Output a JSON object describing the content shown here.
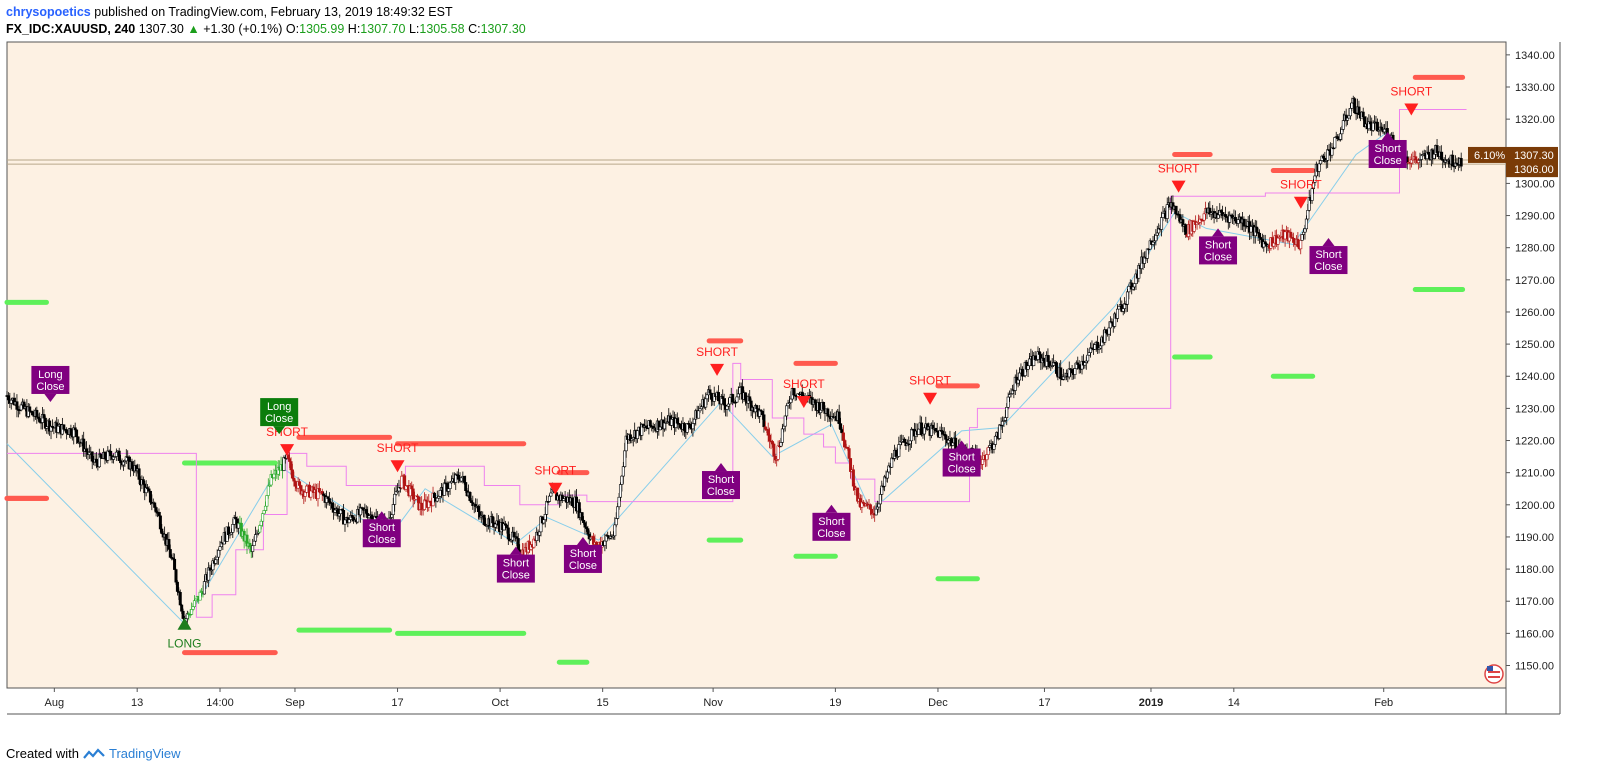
{
  "header": {
    "author": "chrysopoetics",
    "published": "published on TradingView.com, February 13, 2019 18:49:32 EST",
    "symbol": "FX_IDC:XAUUSD, 240",
    "last": "1307.30",
    "change": "+1.30 (+0.1%)",
    "o_label": "O:",
    "o_val": "1305.99",
    "h_label": "H:",
    "h_val": "1307.70",
    "l_label": "L:",
    "l_val": "1305.58",
    "c_label": "C:",
    "c_val": "1307.30"
  },
  "footer": {
    "created": "Created with",
    "brand": "TradingView"
  },
  "colors": {
    "background": "#fdf1e3",
    "up_candle": "#2aa82a",
    "down_candle": "#b01515",
    "normal_candle": "#000000",
    "short_marker": "#ff1f1f",
    "long_marker": "#1e7e1e",
    "close_box": "#800080",
    "long_close_box": "#0b7d0b",
    "level_red": "#ff5a4f",
    "level_green": "#5ef05a",
    "trail_line": "#ee82ee",
    "connector": "#87ceeb",
    "price_tag": "#7a3b07"
  },
  "chart_data": {
    "type": "candlestick",
    "title": "",
    "y_ticks": [
      "1340.00",
      "1330.00",
      "1320.00",
      "1310.00",
      "1300.00",
      "1290.00",
      "1280.00",
      "1270.00",
      "1260.00",
      "1250.00",
      "1240.00",
      "1230.00",
      "1220.00",
      "1210.00",
      "1200.00",
      "1190.00",
      "1180.00",
      "1170.00",
      "1160.00",
      "1150.00"
    ],
    "ylim": [
      1143,
      1344
    ],
    "x_ticks": [
      {
        "label": "Aug",
        "x": 0.1,
        "bold": false
      },
      {
        "label": "13",
        "x": 1.15,
        "bold": false
      },
      {
        "label": "14:00",
        "x": 2.2,
        "bold": false
      },
      {
        "label": "Sep",
        "x": 3.15,
        "bold": false
      },
      {
        "label": "17",
        "x": 4.45,
        "bold": false
      },
      {
        "label": "Oct",
        "x": 5.75,
        "bold": false
      },
      {
        "label": "15",
        "x": 7.05,
        "bold": false
      },
      {
        "label": "Nov",
        "x": 8.45,
        "bold": false
      },
      {
        "label": "19",
        "x": 10.0,
        "bold": false
      },
      {
        "label": "Dec",
        "x": 11.3,
        "bold": false
      },
      {
        "label": "17",
        "x": 12.65,
        "bold": false
      },
      {
        "label": "2019",
        "x": 14.0,
        "bold": true
      },
      {
        "label": "14",
        "x": 15.05,
        "bold": false
      },
      {
        "label": "Feb",
        "x": 16.95,
        "bold": false
      }
    ],
    "xlim": [
      -0.5,
      18.5
    ],
    "price_path": [
      [
        -0.5,
        1234
      ],
      [
        -0.3,
        1230
      ],
      [
        0.1,
        1224
      ],
      [
        0.35,
        1223
      ],
      [
        0.6,
        1213
      ],
      [
        0.85,
        1216
      ],
      [
        1.1,
        1212
      ],
      [
        1.4,
        1198
      ],
      [
        1.6,
        1182
      ],
      [
        1.75,
        1164
      ],
      [
        1.95,
        1172
      ],
      [
        2.2,
        1188
      ],
      [
        2.4,
        1195
      ],
      [
        2.6,
        1185
      ],
      [
        2.85,
        1208
      ],
      [
        3.05,
        1214
      ],
      [
        3.2,
        1205
      ],
      [
        3.5,
        1203
      ],
      [
        3.8,
        1195
      ],
      [
        4.05,
        1198
      ],
      [
        4.3,
        1193
      ],
      [
        4.5,
        1208
      ],
      [
        4.75,
        1199
      ],
      [
        5.0,
        1204
      ],
      [
        5.25,
        1209
      ],
      [
        5.5,
        1196
      ],
      [
        5.8,
        1193
      ],
      [
        6.05,
        1185
      ],
      [
        6.2,
        1190
      ],
      [
        6.4,
        1203
      ],
      [
        6.7,
        1201
      ],
      [
        6.95,
        1187
      ],
      [
        7.2,
        1191
      ],
      [
        7.35,
        1221
      ],
      [
        7.6,
        1224
      ],
      [
        7.9,
        1226
      ],
      [
        8.15,
        1224
      ],
      [
        8.4,
        1235
      ],
      [
        8.6,
        1231
      ],
      [
        8.8,
        1235
      ],
      [
        9.05,
        1228
      ],
      [
        9.25,
        1215
      ],
      [
        9.45,
        1236
      ],
      [
        9.7,
        1232
      ],
      [
        10.05,
        1227
      ],
      [
        10.3,
        1200
      ],
      [
        10.5,
        1198
      ],
      [
        10.75,
        1216
      ],
      [
        11.05,
        1224
      ],
      [
        11.35,
        1222
      ],
      [
        11.6,
        1217
      ],
      [
        11.85,
        1214
      ],
      [
        12.05,
        1221
      ],
      [
        12.3,
        1240
      ],
      [
        12.55,
        1246
      ],
      [
        12.75,
        1244
      ],
      [
        12.9,
        1239
      ],
      [
        13.15,
        1245
      ],
      [
        13.4,
        1252
      ],
      [
        13.7,
        1265
      ],
      [
        14.0,
        1282
      ],
      [
        14.25,
        1294
      ],
      [
        14.45,
        1285
      ],
      [
        14.7,
        1291
      ],
      [
        14.95,
        1290
      ],
      [
        15.2,
        1288
      ],
      [
        15.45,
        1281
      ],
      [
        15.7,
        1284
      ],
      [
        15.9,
        1281
      ],
      [
        16.1,
        1305
      ],
      [
        16.35,
        1313
      ],
      [
        16.55,
        1325
      ],
      [
        16.75,
        1318
      ],
      [
        17.0,
        1316
      ],
      [
        17.2,
        1308
      ],
      [
        17.4,
        1307
      ],
      [
        17.6,
        1310
      ],
      [
        17.8,
        1307
      ],
      [
        17.95,
        1307.3
      ]
    ],
    "red_segments": [
      [
        3.05,
        3.5
      ],
      [
        4.5,
        4.9
      ],
      [
        6.0,
        6.2
      ],
      [
        6.9,
        7.05
      ],
      [
        9.1,
        9.3
      ],
      [
        10.1,
        10.5
      ],
      [
        11.8,
        11.95
      ],
      [
        14.45,
        14.7
      ],
      [
        15.5,
        15.9
      ],
      [
        17.25,
        17.4
      ]
    ],
    "green_segments": [
      [
        1.8,
        2.0
      ],
      [
        2.45,
        2.6
      ],
      [
        2.7,
        3.0
      ]
    ],
    "connector_line": [
      [
        -0.5,
        1219
      ],
      [
        1.75,
        1163
      ],
      [
        2.95,
        1212
      ],
      [
        4.35,
        1190
      ],
      [
        4.8,
        1205
      ],
      [
        5.95,
        1188
      ],
      [
        6.35,
        1196
      ],
      [
        7.0,
        1189
      ],
      [
        8.55,
        1232
      ],
      [
        9.2,
        1215
      ],
      [
        9.95,
        1225
      ],
      [
        10.45,
        1198
      ],
      [
        11.6,
        1223
      ],
      [
        12.1,
        1224
      ],
      [
        13.55,
        1262
      ],
      [
        14.3,
        1291
      ],
      [
        14.7,
        1286
      ],
      [
        15.8,
        1281
      ],
      [
        16.6,
        1309
      ],
      [
        17.0,
        1316
      ]
    ],
    "trail_line": [
      [
        -0.5,
        1216
      ],
      [
        0.1,
        1216
      ],
      [
        1.9,
        1165
      ],
      [
        2.1,
        1172
      ],
      [
        2.4,
        1186
      ],
      [
        2.75,
        1197
      ],
      [
        3.05,
        1216
      ],
      [
        3.3,
        1212
      ],
      [
        3.8,
        1206
      ],
      [
        4.55,
        1212
      ],
      [
        5.25,
        1212
      ],
      [
        5.55,
        1206
      ],
      [
        6.0,
        1200
      ],
      [
        6.5,
        1203
      ],
      [
        6.85,
        1201
      ],
      [
        8.7,
        1244
      ],
      [
        8.8,
        1239
      ],
      [
        9.2,
        1227
      ],
      [
        9.6,
        1222
      ],
      [
        9.85,
        1218
      ],
      [
        10.0,
        1213
      ],
      [
        10.2,
        1208
      ],
      [
        10.5,
        1201
      ],
      [
        11.7,
        1224
      ],
      [
        11.8,
        1230
      ],
      [
        12.1,
        1230
      ],
      [
        14.25,
        1296
      ],
      [
        14.9,
        1296
      ],
      [
        15.45,
        1297
      ],
      [
        16.0,
        1297
      ],
      [
        17.15,
        1323
      ],
      [
        18.0,
        1323
      ]
    ],
    "levels_red": [
      [
        -0.5,
        0.0,
        1202
      ],
      [
        -0.5,
        0.0,
        1202
      ],
      [
        1.75,
        2.9,
        1154
      ],
      [
        3.2,
        4.35,
        1221
      ],
      [
        4.45,
        6.05,
        1219
      ],
      [
        6.5,
        6.85,
        1210
      ],
      [
        8.4,
        8.8,
        1251
      ],
      [
        9.5,
        10.0,
        1244
      ],
      [
        11.3,
        11.8,
        1237
      ],
      [
        14.3,
        14.75,
        1309
      ],
      [
        15.55,
        16.05,
        1304
      ],
      [
        17.35,
        17.95,
        1333
      ]
    ],
    "levels_green": [
      [
        -0.5,
        0.0,
        1263
      ],
      [
        1.75,
        2.9,
        1213
      ],
      [
        3.2,
        4.35,
        1161
      ],
      [
        4.45,
        6.05,
        1160
      ],
      [
        6.5,
        6.85,
        1151
      ],
      [
        8.4,
        8.8,
        1189
      ],
      [
        9.5,
        10.0,
        1184
      ],
      [
        11.3,
        11.8,
        1177
      ],
      [
        14.3,
        14.75,
        1246
      ],
      [
        15.55,
        16.05,
        1240
      ],
      [
        17.35,
        17.95,
        1267
      ]
    ],
    "shorts": [
      [
        3.05,
        1217
      ],
      [
        4.45,
        1212
      ],
      [
        6.45,
        1205
      ],
      [
        8.5,
        1242
      ],
      [
        9.6,
        1232
      ],
      [
        11.2,
        1233
      ],
      [
        14.35,
        1299
      ],
      [
        15.9,
        1294
      ],
      [
        17.3,
        1323
      ]
    ],
    "short_label": "SHORT",
    "longs": [
      [
        1.75,
        1163
      ]
    ],
    "long_label": "LONG",
    "short_close": [
      [
        4.25,
        1198
      ],
      [
        5.95,
        1187
      ],
      [
        6.8,
        1190
      ],
      [
        8.55,
        1213
      ],
      [
        9.95,
        1200
      ],
      [
        11.6,
        1220
      ],
      [
        14.85,
        1286
      ],
      [
        16.25,
        1283
      ],
      [
        17.0,
        1316
      ]
    ],
    "short_close_label": [
      "Short",
      "Close"
    ],
    "long_close": [
      [
        [
          0.05,
          1232
        ],
        "purple"
      ],
      [
        [
          2.95,
          1222
        ],
        "green"
      ]
    ],
    "long_close_label": [
      "Long",
      "Close"
    ],
    "price_tags": [
      {
        "value": 1307.3,
        "text": "1307.30",
        "pct": "6.10%"
      },
      {
        "value": 1306.0,
        "text": "1306.00",
        "pct": ""
      }
    ]
  }
}
